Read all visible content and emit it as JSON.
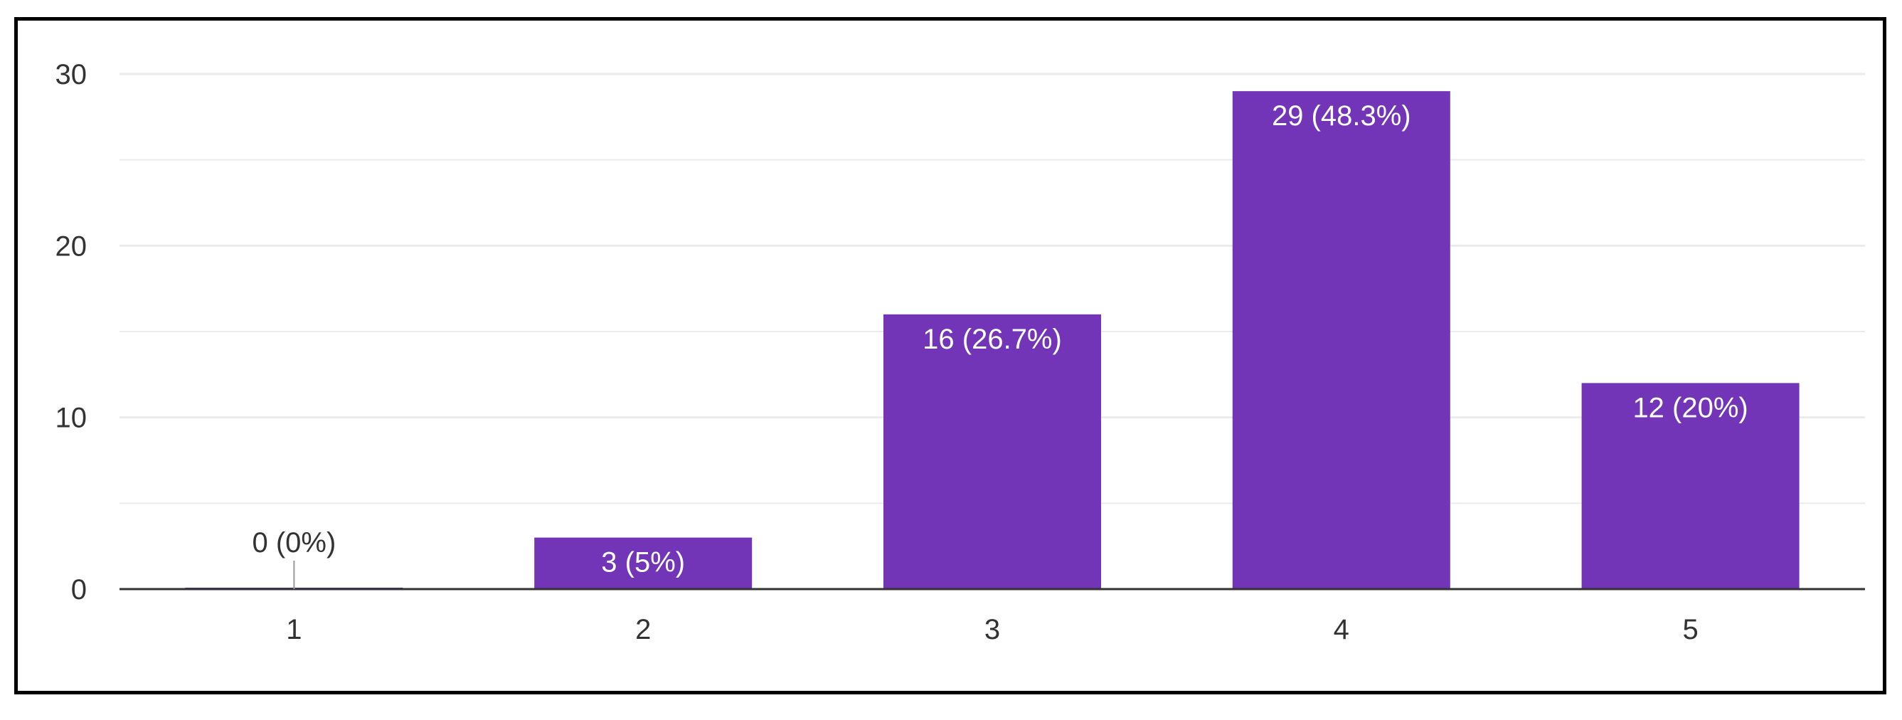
{
  "chart_data": {
    "type": "bar",
    "categories": [
      "1",
      "2",
      "3",
      "4",
      "5"
    ],
    "values": [
      0,
      3,
      16,
      29,
      12
    ],
    "data_labels": [
      "0 (0%)",
      "3 (5%)",
      "16 (26.7%)",
      "29 (48.3%)",
      "12 (20%)"
    ],
    "y_ticks": [
      "0",
      "10",
      "20",
      "30"
    ],
    "ylim": [
      0,
      30
    ],
    "title": "",
    "xlabel": "",
    "ylabel": "",
    "grid": true,
    "minor_grid": true,
    "legend": "none"
  },
  "colors": {
    "bar": "#7335b8",
    "inner_label": "#ffffff",
    "outer_label": "#333333",
    "tick_label": "#333333",
    "grid": "#ebebeb",
    "baseline": "#333333",
    "frame": "#000000"
  }
}
